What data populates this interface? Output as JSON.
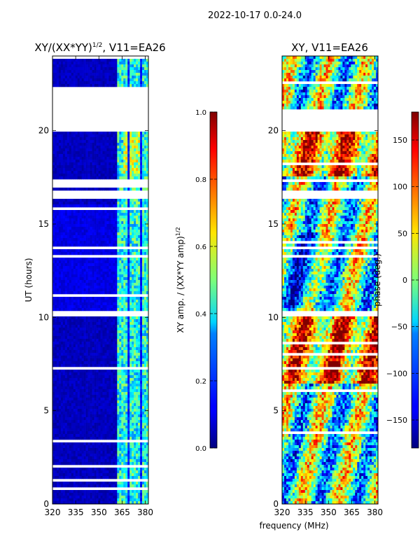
{
  "suptitle": "2022-10-17 0.0-24.0",
  "xlabel": "frequency (MHz)",
  "chart_data": [
    {
      "type": "heatmap",
      "title_prefix": "XY/(XX*YY)",
      "title_sup": "1/2",
      "title_suffix": ", V11=EA26",
      "ylabel": "UT (hours)",
      "xlim": [
        320,
        382
      ],
      "ylim": [
        0,
        24
      ],
      "xticks": [
        "320",
        "335",
        "350",
        "365",
        "380"
      ],
      "yticks": [
        "0",
        "5",
        "10",
        "15",
        "20"
      ],
      "colorbar": {
        "label_prefix": "XY amp. / (XX*YY amp)",
        "label_sup": "1/2",
        "range": [
          0.0,
          1.0
        ],
        "ticks": [
          "0.0",
          "0.2",
          "0.4",
          "0.6",
          "0.8",
          "1.0"
        ],
        "colormap": "jet"
      },
      "flagged_hours": [
        [
          21.0,
          22.4
        ],
        [
          20.0,
          21.0
        ],
        [
          17.0,
          17.4
        ],
        [
          16.4,
          16.8
        ],
        [
          10.1,
          10.35
        ]
      ],
      "notes": "amplitude low (~0.05) below 362 MHz, elevated (~0.3-0.6) above 362 MHz"
    },
    {
      "type": "heatmap",
      "title": "XY, V11=EA26",
      "xlim": [
        320,
        382
      ],
      "ylim": [
        0,
        24
      ],
      "xticks": [
        "320",
        "335",
        "350",
        "365",
        "380"
      ],
      "yticks": [
        "0",
        "5",
        "10",
        "15",
        "20"
      ],
      "colorbar": {
        "label": "phase (deg.)",
        "range": [
          -180,
          180
        ],
        "ticks": [
          "−150",
          "−100",
          "−50",
          "0",
          "50",
          "100",
          "150"
        ],
        "colormap": "jet"
      },
      "flagged_hours": [
        [
          20.0,
          21.0
        ],
        [
          16.4,
          16.8
        ],
        [
          10.1,
          10.35
        ]
      ],
      "notes": "phase varies widely across band; mostly warm (0-150 deg) near 18-20 UT and 7-10 UT"
    }
  ]
}
